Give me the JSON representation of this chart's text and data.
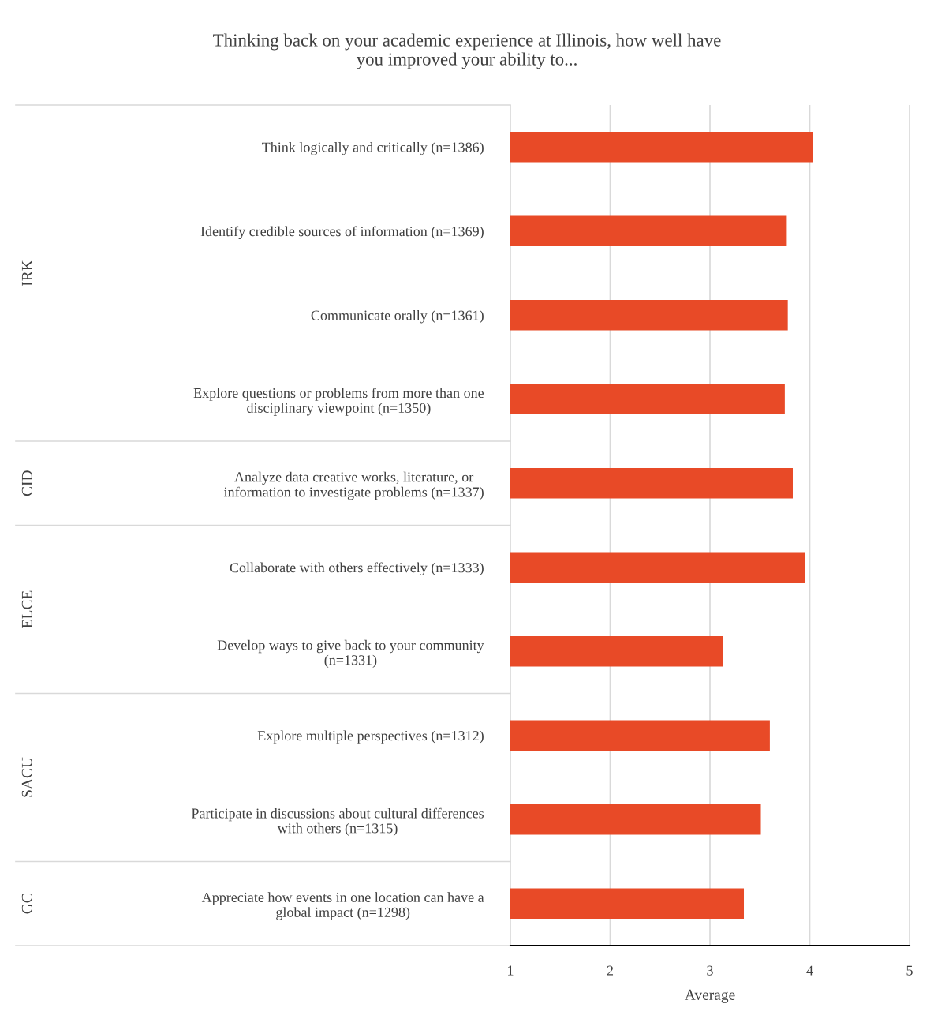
{
  "chart_data": {
    "type": "bar",
    "orientation": "horizontal",
    "title": "Thinking back on your academic experience at Illinois, how well have\nyou improved your ability to...",
    "xlabel": "Average",
    "categories": [
      "Think logically and critically (n=1386)",
      "Identify credible sources of information (n=1369)",
      "Communicate orally (n=1361)",
      "Explore questions or problems from more than one\ndisciplinary viewpoint (n=1350)",
      "Analyze data creative works, literature, or\ninformation to investigate problems (n=1337)",
      "Collaborate with others effectively (n=1333)",
      "Develop ways to give back to your community\n(n=1331)",
      "Explore multiple perspectives (n=1312)",
      "Participate in discussions about cultural differences\nwith others (n=1315)",
      "Appreciate how events in one location can have a\nglobal impact (n=1298)"
    ],
    "values": [
      4.03,
      3.77,
      3.78,
      3.75,
      3.83,
      3.95,
      3.13,
      3.6,
      3.51,
      3.34
    ],
    "color": "#e84a27",
    "xlim": [
      1,
      5
    ],
    "xticks": [
      1,
      2,
      3,
      4,
      5
    ],
    "grid": "x",
    "annotations": [
      "IRK",
      "CID",
      "ELCE",
      "SACU",
      "GC"
    ]
  }
}
